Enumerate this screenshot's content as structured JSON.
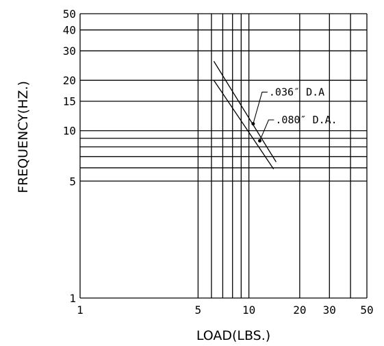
{
  "chart_data": {
    "type": "line",
    "title": "",
    "xlabel": "LOAD(LBS.)",
    "ylabel": "FREQUENCY(HZ.)",
    "x_scale": "log",
    "y_scale": "log",
    "xlim": [
      1,
      50
    ],
    "ylim": [
      1,
      50
    ],
    "grid": true,
    "x_gridlines": [
      5,
      6,
      7,
      8,
      9,
      10,
      20,
      30,
      40,
      50
    ],
    "y_gridlines": [
      5,
      6,
      7,
      8,
      9,
      10,
      15,
      20,
      30,
      40,
      50
    ],
    "x_tick_labels": [
      {
        "value": 1,
        "label": "1"
      },
      {
        "value": 5,
        "label": "5"
      },
      {
        "value": 10,
        "label": "10"
      },
      {
        "value": 20,
        "label": "20"
      },
      {
        "value": 30,
        "label": "30"
      },
      {
        "value": 50,
        "label": "50"
      }
    ],
    "y_tick_labels": [
      {
        "value": 1,
        "label": "1"
      },
      {
        "value": 5,
        "label": "5"
      },
      {
        "value": 10,
        "label": "10"
      },
      {
        "value": 15,
        "label": "15"
      },
      {
        "value": 20,
        "label": "20"
      },
      {
        "value": 30,
        "label": "30"
      },
      {
        "value": 40,
        "label": "40"
      },
      {
        "value": 50,
        "label": "50"
      }
    ],
    "series": [
      {
        "name": ".036″ D.A",
        "points": [
          [
            6.2,
            26
          ],
          [
            14.5,
            6.5
          ]
        ]
      },
      {
        "name": ".080″ D.A.",
        "points": [
          [
            6.2,
            20
          ],
          [
            14.0,
            5.9
          ]
        ]
      }
    ],
    "annotations": [
      {
        "text": ".036″ D.A",
        "series": 0,
        "point": [
          10.6,
          11.0
        ],
        "label_at": [
          12.9,
          17.0
        ]
      },
      {
        "text": ".080″ D.A.",
        "series": 1,
        "point": [
          11.6,
          8.7
        ],
        "label_at": [
          14.1,
          11.6
        ]
      }
    ]
  }
}
